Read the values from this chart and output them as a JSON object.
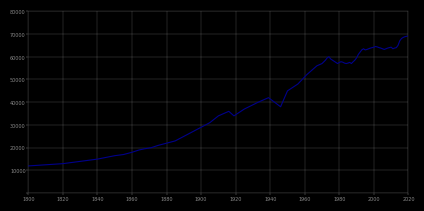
{
  "years": [
    1800,
    1810,
    1820,
    1830,
    1840,
    1850,
    1855,
    1860,
    1864,
    1867,
    1871,
    1875,
    1880,
    1885,
    1890,
    1895,
    1900,
    1905,
    1910,
    1916,
    1919,
    1925,
    1933,
    1939,
    1946,
    1950,
    1952,
    1956,
    1961,
    1964,
    1967,
    1970,
    1972,
    1973,
    1974,
    1975,
    1976,
    1977,
    1978,
    1979,
    1980,
    1981,
    1982,
    1983,
    1984,
    1985,
    1986,
    1987,
    1988,
    1989,
    1990,
    1991,
    1992,
    1993,
    1994,
    1995,
    1996,
    1997,
    1998,
    1999,
    2000,
    2001,
    2002,
    2003,
    2004,
    2005,
    2006,
    2007,
    2008,
    2009,
    2010,
    2011,
    2012,
    2013,
    2014,
    2015,
    2016,
    2017,
    2018,
    2019,
    2020
  ],
  "population": [
    12000,
    12500,
    13000,
    14000,
    15000,
    16500,
    17000,
    18000,
    19000,
    19500,
    20000,
    21000,
    22000,
    23000,
    25000,
    27000,
    29000,
    31000,
    34000,
    36000,
    34000,
    37000,
    40000,
    42000,
    38000,
    45000,
    46000,
    48000,
    52000,
    54000,
    56000,
    57000,
    58500,
    59500,
    60000,
    59000,
    58500,
    58000,
    57500,
    57000,
    57500,
    57800,
    57600,
    57200,
    57000,
    57200,
    57500,
    57000,
    57800,
    58500,
    59500,
    61000,
    62000,
    63000,
    63500,
    63000,
    63200,
    63500,
    63800,
    64000,
    64200,
    64500,
    64300,
    64000,
    63800,
    63500,
    63200,
    63500,
    63800,
    64000,
    64200,
    63500,
    63800,
    64000,
    65000,
    67000,
    68000,
    68500,
    68800,
    69000,
    69200
  ],
  "xlim": [
    1800,
    2020
  ],
  "ylim": [
    0,
    80000
  ],
  "ytick_count": 9,
  "ytick_step": 10000,
  "xticks": [
    1800,
    1820,
    1840,
    1860,
    1880,
    1900,
    1920,
    1940,
    1960,
    1980,
    2000,
    2020
  ],
  "line_color": "#00008B",
  "line_width": 0.8,
  "background_color": "#000000",
  "plot_bg_color": "#000000",
  "grid_color": "#ffffff",
  "grid_alpha": 0.35,
  "grid_linewidth": 0.3,
  "tick_color": "#888888",
  "tick_fontsize": 3.5,
  "spine_color": "#444444"
}
